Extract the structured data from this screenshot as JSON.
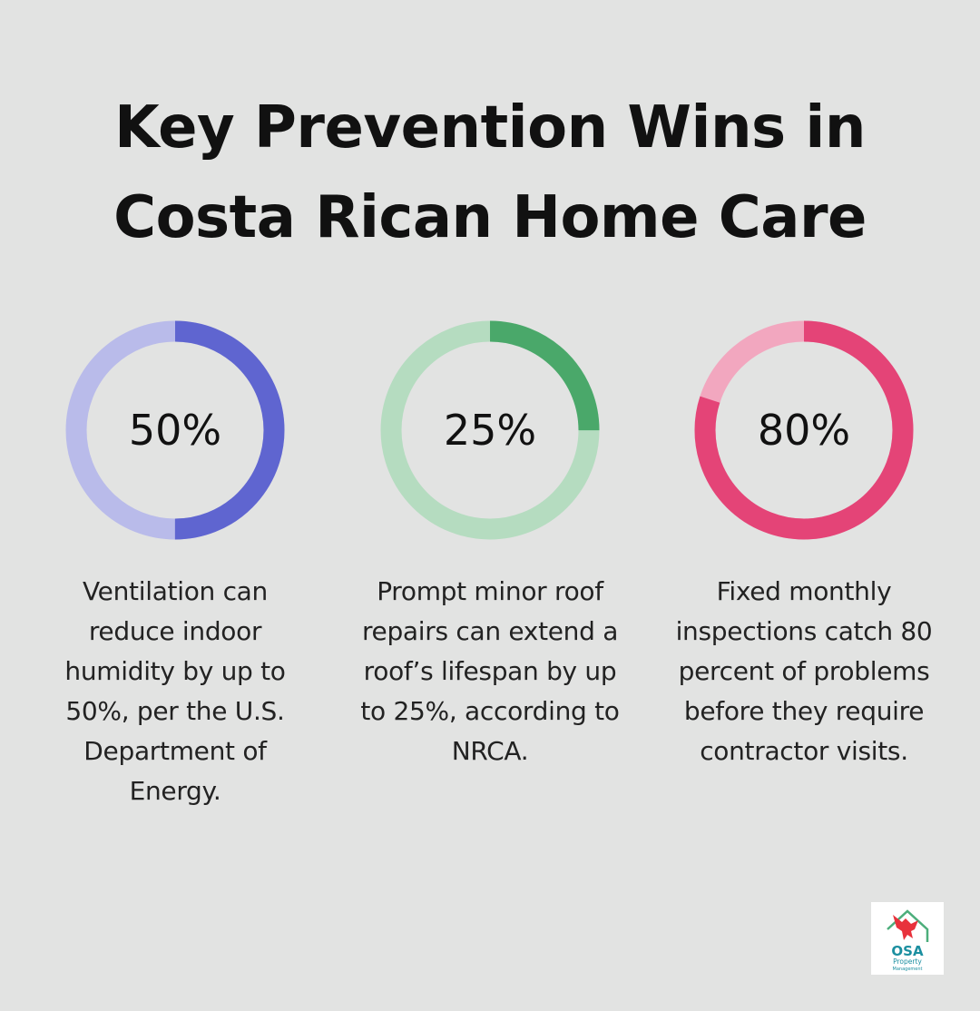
{
  "title": "Key Prevention Wins in Costa Rican Home Care",
  "title_lines": [
    "Key Prevention Wins in",
    "Costa Rican Home Care"
  ],
  "chart_data": [
    {
      "type": "pie",
      "values": [
        50,
        50
      ],
      "label": "50%",
      "description": "Ventilation can reduce indoor humidity by up to 50%, per the U.S. Department of Energy.",
      "colors": {
        "value": "#5f65d0",
        "track": "#b9bbea"
      }
    },
    {
      "type": "pie",
      "values": [
        25,
        75
      ],
      "label": "25%",
      "description": "Prompt minor roof repairs can extend a roof’s lifespan by up to 25%, according to NRCA.",
      "colors": {
        "value": "#4aa86a",
        "track": "#b5dcc0"
      }
    },
    {
      "type": "pie",
      "values": [
        80,
        20
      ],
      "label": "80%",
      "description": "Fixed monthly inspections catch 80 percent of problems before they require contractor visits.",
      "colors": {
        "value": "#e44477",
        "track": "#f2a7bf"
      }
    }
  ],
  "logo": {
    "brand": "OSA",
    "sub1": "Property",
    "sub2": "Management",
    "colors": {
      "bird": "#e8323c",
      "house": "#4cae7b",
      "text": "#1b8fa0"
    }
  },
  "colors": {
    "background": "#e2e3e2",
    "text": "#111111"
  }
}
